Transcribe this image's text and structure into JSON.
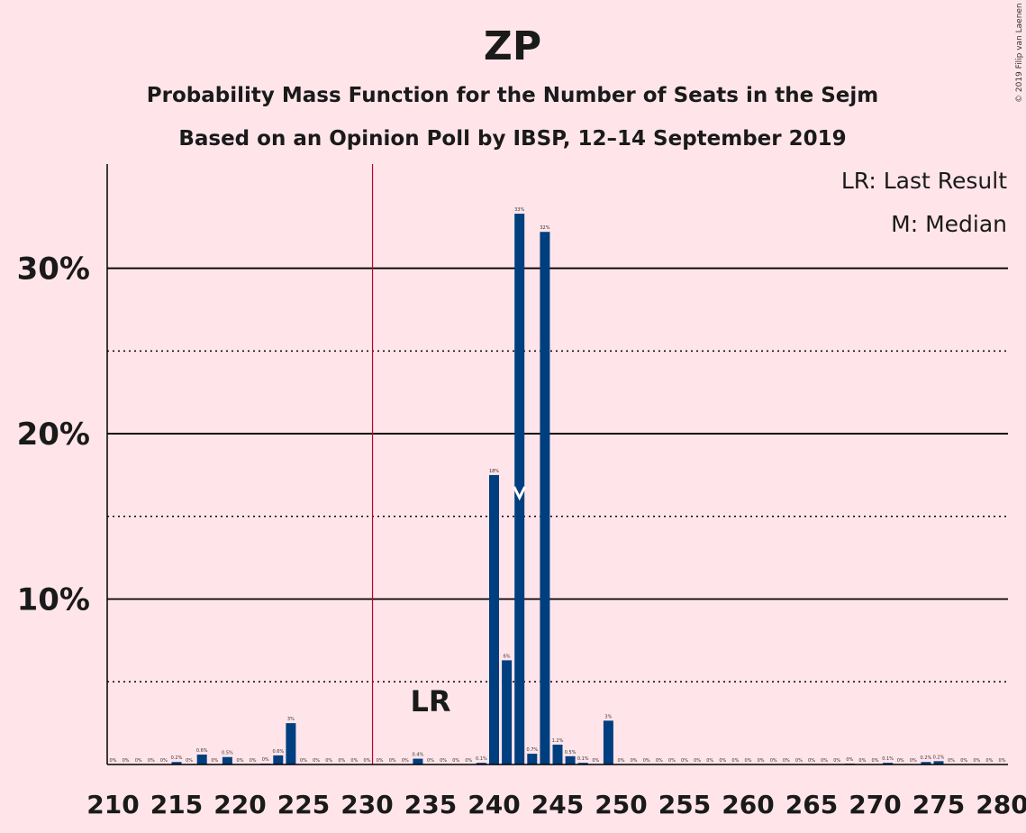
{
  "chart_data": {
    "type": "bar",
    "title": "ZP",
    "subtitle": "Probability Mass Function for the Number of Seats in the Sejm",
    "subtitle2": "Based on an Opinion Poll by IBSP, 12–14 September 2019",
    "copyright": "© 2019 Filip van Laenen",
    "ylim": [
      0,
      36.3
    ],
    "y_major_ticks": [
      10,
      20,
      30
    ],
    "y_major_labels": [
      "10%",
      "20%",
      "30%"
    ],
    "y_minor_ticks": [
      5,
      15,
      25
    ],
    "x_ticks": [
      210,
      215,
      220,
      225,
      230,
      235,
      240,
      245,
      250,
      255,
      260,
      265,
      270,
      275,
      280
    ],
    "x_tick_labels": [
      "210",
      "215",
      "220",
      "225",
      "230",
      "235",
      "240",
      "245",
      "250",
      "255",
      "260",
      "265",
      "270",
      "275",
      "280"
    ],
    "seats": [
      210,
      211,
      212,
      213,
      214,
      215,
      216,
      217,
      218,
      219,
      220,
      221,
      222,
      223,
      224,
      225,
      226,
      227,
      228,
      229,
      230,
      231,
      232,
      233,
      234,
      235,
      236,
      237,
      238,
      239,
      240,
      241,
      242,
      243,
      244,
      245,
      246,
      247,
      248,
      249,
      250,
      251,
      252,
      253,
      254,
      255,
      256,
      257,
      258,
      259,
      260,
      261,
      262,
      263,
      264,
      265,
      266,
      267,
      268,
      269,
      270,
      271,
      272,
      273,
      274,
      275,
      276,
      277,
      278,
      279,
      280
    ],
    "values": [
      0,
      0,
      0,
      0,
      0,
      0.15,
      0,
      0.6,
      0,
      0.45,
      0,
      0,
      0.05,
      0.55,
      2.5,
      0,
      0,
      0,
      0,
      0,
      0,
      0,
      0,
      0,
      0.35,
      0,
      0,
      0,
      0,
      0.1,
      17.5,
      6.3,
      33.3,
      0.65,
      32.2,
      1.2,
      0.5,
      0.1,
      0,
      2.65,
      0,
      0,
      0,
      0,
      0,
      0,
      0,
      0,
      0,
      0,
      0,
      0,
      0,
      0,
      0,
      0,
      0,
      0,
      0.05,
      0,
      0,
      0.1,
      0,
      0,
      0.15,
      0.2,
      0,
      0,
      0,
      0,
      0
    ],
    "labels": [
      "0%",
      "0%",
      "0%",
      "0%",
      "0%",
      "0.2%",
      "0%",
      "0.6%",
      "0%",
      "0.5%",
      "0%",
      "0%",
      "0%",
      "0.6%",
      "3%",
      "0%",
      "0%",
      "0%",
      "0%",
      "0%",
      "0%",
      "0%",
      "0%",
      "0%",
      "0.4%",
      "0%",
      "0%",
      "0%",
      "0%",
      "0.1%",
      "18%",
      "6%",
      "33%",
      "0.7%",
      "32%",
      "1.2%",
      "0.5%",
      "0.1%",
      "0%",
      "3%",
      "0%",
      "0%",
      "0%",
      "0%",
      "0%",
      "0%",
      "0%",
      "0%",
      "0%",
      "0%",
      "0%",
      "0%",
      "0%",
      "0%",
      "0%",
      "0%",
      "0%",
      "0%",
      "0%",
      "0%",
      "0%",
      "0.1%",
      "0%",
      "0%",
      "0.2%",
      "0.2%",
      "0%",
      "0%",
      "0%",
      "0%",
      "0%"
    ],
    "last_result": 231,
    "last_result_label": "LR",
    "median": 242,
    "legend": [
      "LR: Last Result",
      "M: Median"
    ],
    "colors": {
      "bar": "#003F7F",
      "last_result_line": "#C0002A",
      "background": "#FFE5EA",
      "median_mark": "#FFFFFF"
    }
  }
}
